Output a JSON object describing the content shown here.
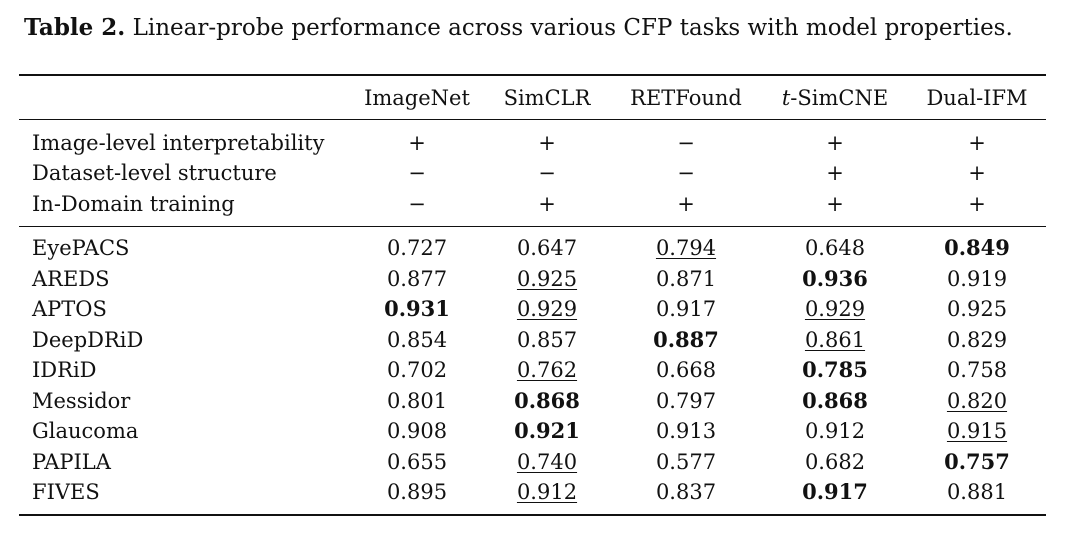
{
  "caption": {
    "label": "Table 2.",
    "text": " Linear-probe performance across various CFP tasks with model properties."
  },
  "header": {
    "c1": "ImageNet",
    "c2": "SimCLR",
    "c3": "RETFound",
    "c4_italic": "t",
    "c4_rest": "-SimCNE",
    "c5": "Dual-IFM"
  },
  "properties": [
    {
      "label": "Image-level interpretability",
      "values": [
        "+",
        "+",
        "−",
        "+",
        "+"
      ]
    },
    {
      "label": "Dataset-level structure",
      "values": [
        "−",
        "−",
        "−",
        "+",
        "+"
      ]
    },
    {
      "label": "In-Domain training",
      "values": [
        "−",
        "+",
        "+",
        "+",
        "+"
      ]
    }
  ],
  "results": [
    {
      "label": "EyePACS",
      "values": [
        "0.727",
        "0.647",
        "0.794",
        "0.648",
        "0.849"
      ],
      "bold": [
        false,
        false,
        false,
        false,
        true
      ],
      "underline": [
        false,
        false,
        true,
        false,
        false
      ]
    },
    {
      "label": "AREDS",
      "values": [
        "0.877",
        "0.925",
        "0.871",
        "0.936",
        "0.919"
      ],
      "bold": [
        false,
        false,
        false,
        true,
        false
      ],
      "underline": [
        false,
        true,
        false,
        false,
        false
      ]
    },
    {
      "label": "APTOS",
      "values": [
        "0.931",
        "0.929",
        "0.917",
        "0.929",
        "0.925"
      ],
      "bold": [
        true,
        false,
        false,
        false,
        false
      ],
      "underline": [
        false,
        true,
        false,
        true,
        false
      ]
    },
    {
      "label": "DeepDRiD",
      "values": [
        "0.854",
        "0.857",
        "0.887",
        "0.861",
        "0.829"
      ],
      "bold": [
        false,
        false,
        true,
        false,
        false
      ],
      "underline": [
        false,
        false,
        false,
        true,
        false
      ]
    },
    {
      "label": "IDRiD",
      "values": [
        "0.702",
        "0.762",
        "0.668",
        "0.785",
        "0.758"
      ],
      "bold": [
        false,
        false,
        false,
        true,
        false
      ],
      "underline": [
        false,
        true,
        false,
        false,
        false
      ]
    },
    {
      "label": "Messidor",
      "values": [
        "0.801",
        "0.868",
        "0.797",
        "0.868",
        "0.820"
      ],
      "bold": [
        false,
        true,
        false,
        true,
        false
      ],
      "underline": [
        false,
        false,
        false,
        false,
        true
      ]
    },
    {
      "label": "Glaucoma",
      "values": [
        "0.908",
        "0.921",
        "0.913",
        "0.912",
        "0.915"
      ],
      "bold": [
        false,
        true,
        false,
        false,
        false
      ],
      "underline": [
        false,
        false,
        false,
        false,
        true
      ]
    },
    {
      "label": "PAPILA",
      "values": [
        "0.655",
        "0.740",
        "0.577",
        "0.682",
        "0.757"
      ],
      "bold": [
        false,
        false,
        false,
        false,
        true
      ],
      "underline": [
        false,
        true,
        false,
        false,
        false
      ]
    },
    {
      "label": "FIVES",
      "values": [
        "0.895",
        "0.912",
        "0.837",
        "0.917",
        "0.881"
      ],
      "bold": [
        false,
        false,
        false,
        true,
        false
      ],
      "underline": [
        false,
        true,
        false,
        false,
        false
      ]
    }
  ]
}
